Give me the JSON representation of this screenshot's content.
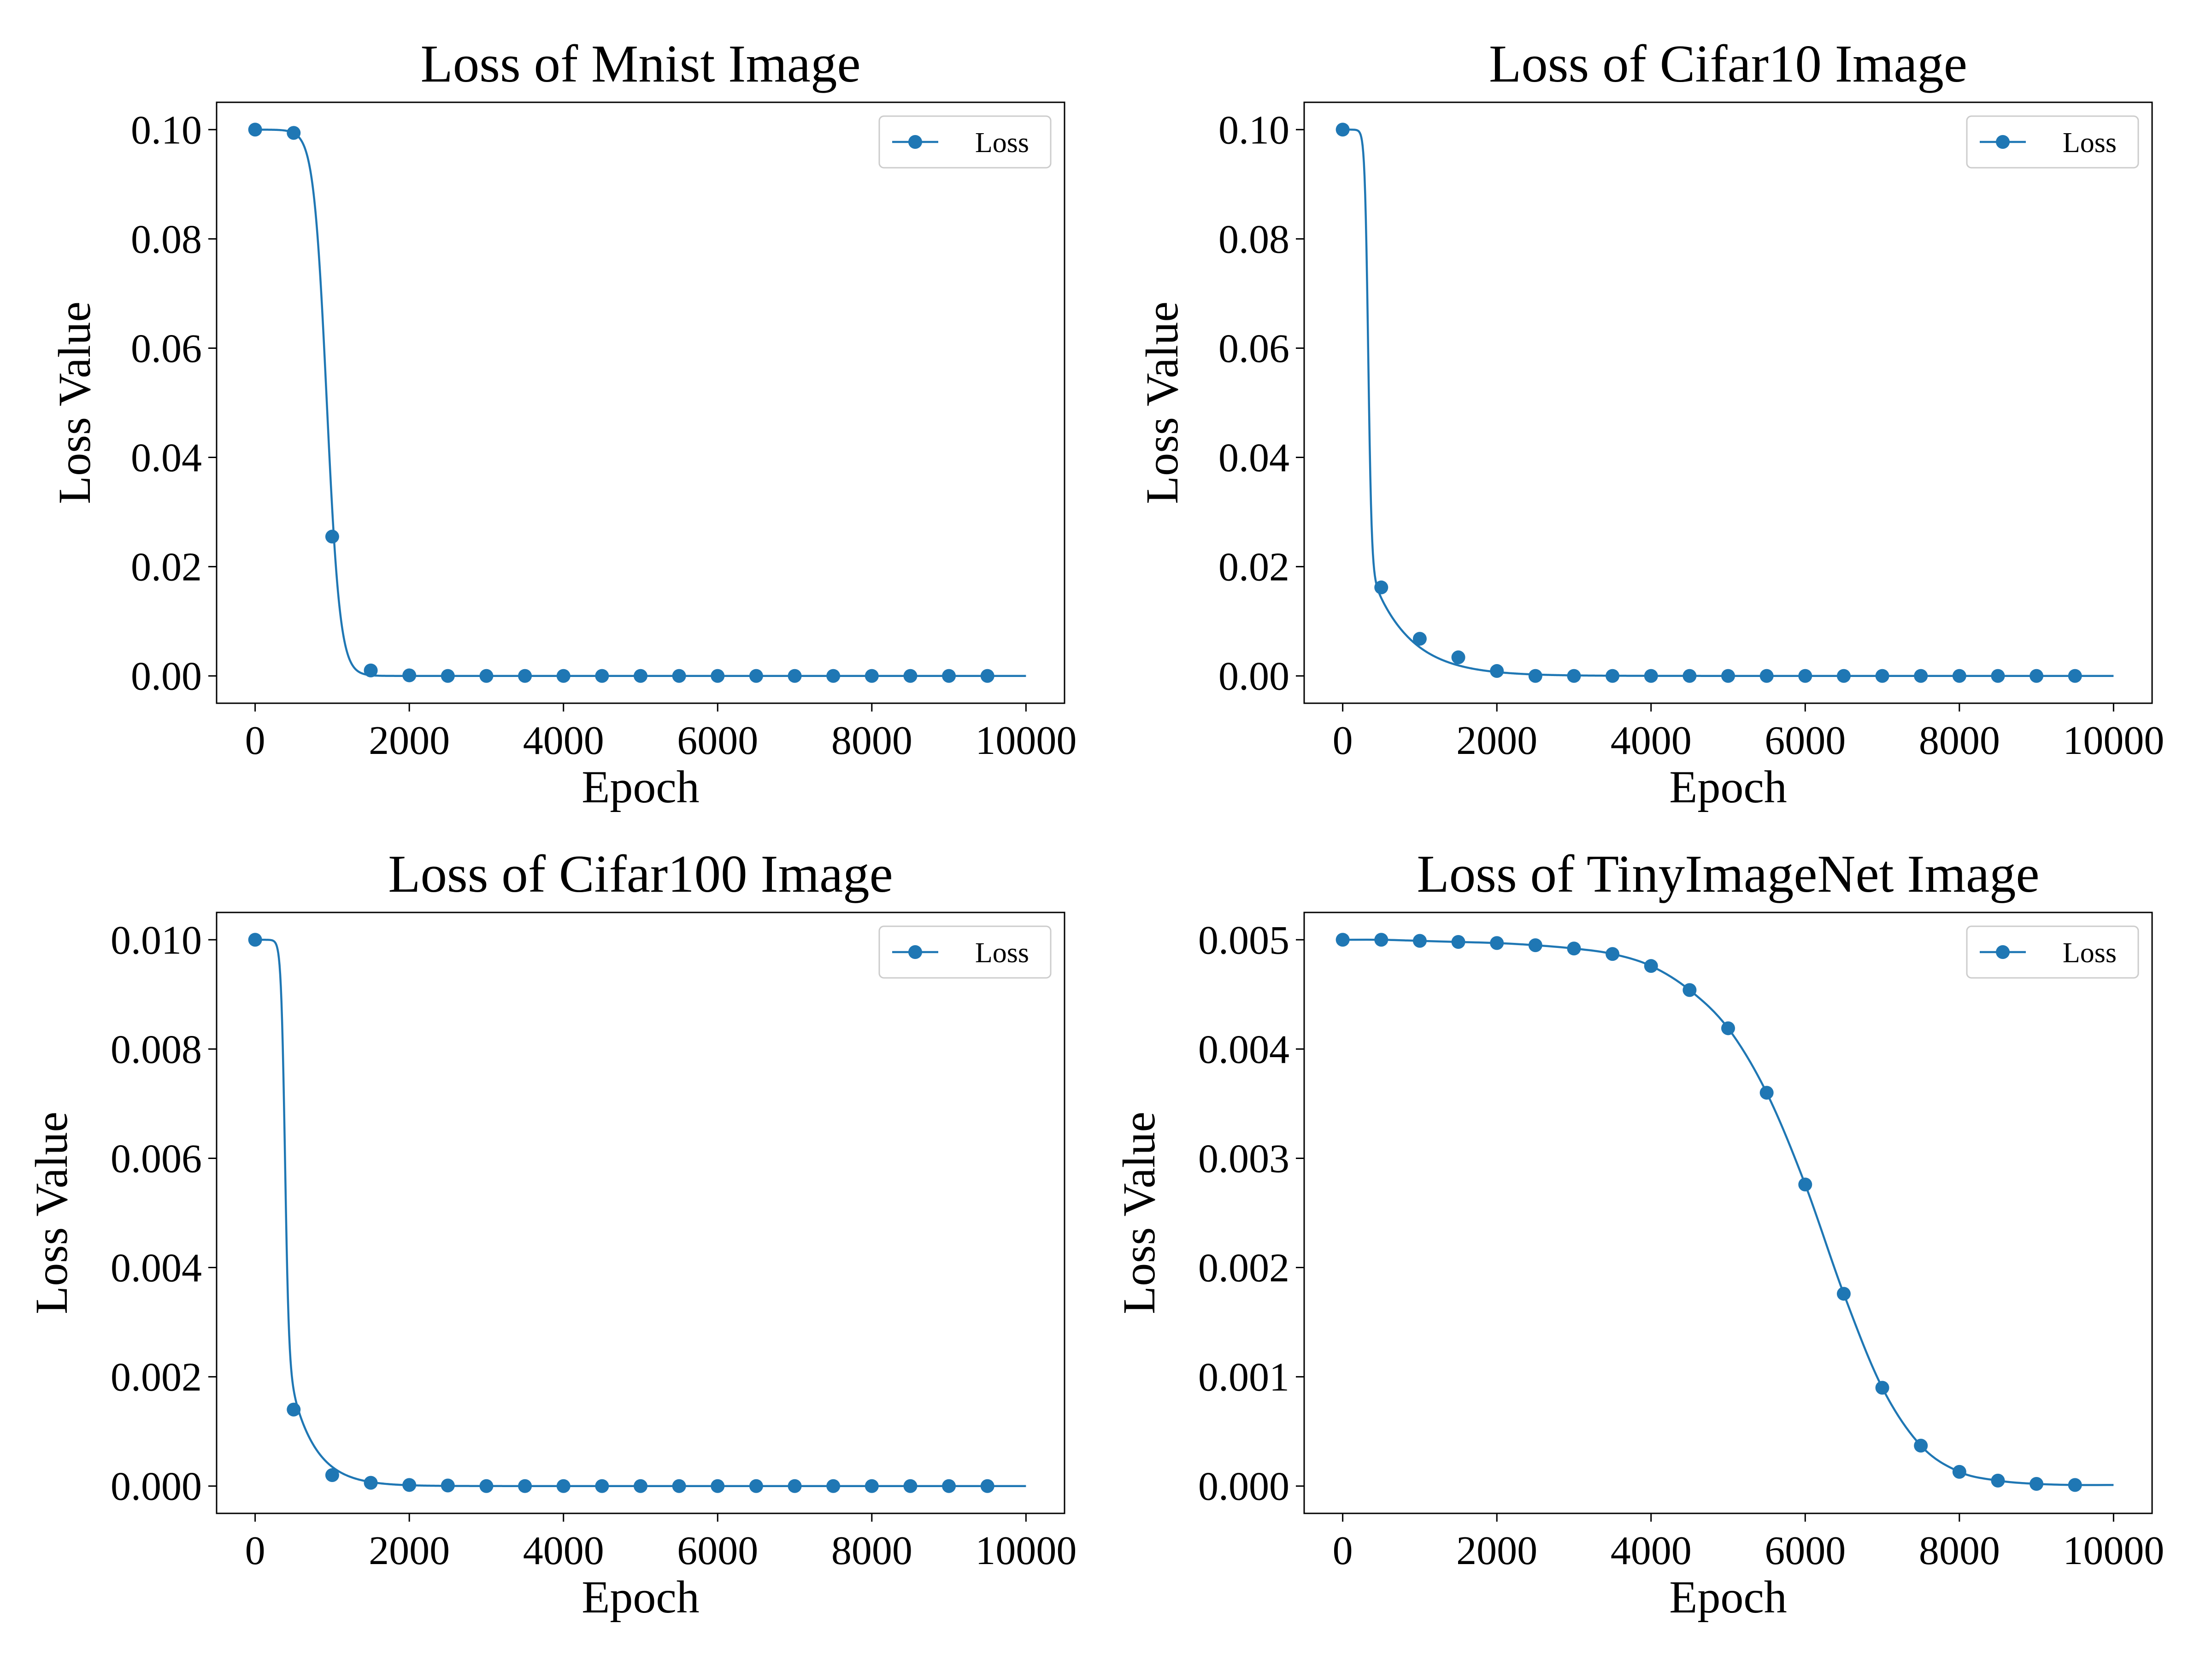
{
  "chart_data": [
    {
      "type": "line",
      "title": "Loss of Mnist Image",
      "xlabel": "Epoch",
      "ylabel": "Loss Value",
      "xlim": [
        -500,
        10500
      ],
      "ylim": [
        -0.005,
        0.105
      ],
      "xticks": [
        0,
        2000,
        4000,
        6000,
        8000,
        10000
      ],
      "xtick_labels": [
        "0",
        "2000",
        "4000",
        "6000",
        "8000",
        "10000"
      ],
      "yticks": [
        0.0,
        0.02,
        0.04,
        0.06,
        0.08,
        0.1
      ],
      "ytick_labels": [
        "0.00",
        "0.02",
        "0.04",
        "0.06",
        "0.08",
        "0.10"
      ],
      "legend": {
        "placement": "upper right",
        "entries": [
          "Loss"
        ]
      },
      "grid": false,
      "curve_shape": {
        "kind": "sigmoid",
        "top": 0.1,
        "bottom": 0.0,
        "center": 930,
        "width": 85
      },
      "series": [
        {
          "name": "Loss",
          "color": "#1f77b4",
          "x": [
            0,
            500,
            1000,
            1500,
            2000,
            2500,
            3000,
            3500,
            4000,
            4500,
            5000,
            5500,
            6000,
            6500,
            7000,
            7500,
            8000,
            8500,
            9000,
            9500
          ],
          "y": [
            0.1,
            0.0994,
            0.0255,
            0.001,
            0.0001,
            0.0,
            0.0,
            0.0,
            0.0,
            0.0,
            0.0,
            0.0,
            0.0,
            0.0,
            0.0,
            0.0,
            0.0,
            0.0,
            0.0,
            0.0
          ],
          "line_end_x": 10000
        }
      ]
    },
    {
      "type": "line",
      "title": "Loss of Cifar10 Image",
      "xlabel": "Epoch",
      "ylabel": "Loss Value",
      "xlim": [
        -500,
        10500
      ],
      "ylim": [
        -0.005,
        0.105
      ],
      "xticks": [
        0,
        2000,
        4000,
        6000,
        8000,
        10000
      ],
      "xtick_labels": [
        "0",
        "2000",
        "4000",
        "6000",
        "8000",
        "10000"
      ],
      "yticks": [
        0.0,
        0.02,
        0.04,
        0.06,
        0.08,
        0.1
      ],
      "ytick_labels": [
        "0.00",
        "0.02",
        "0.04",
        "0.06",
        "0.08",
        "0.10"
      ],
      "legend": {
        "placement": "upper right",
        "entries": [
          "Loss"
        ]
      },
      "grid": false,
      "curve_shape": {
        "kind": "sigmoid-with-tail",
        "top": 0.1,
        "bottom": 0.0,
        "center": 330,
        "width": 22,
        "tail_amplitude": 0.02,
        "tail_decay": 500
      },
      "series": [
        {
          "name": "Loss",
          "color": "#1f77b4",
          "x": [
            0,
            500,
            1000,
            1500,
            2000,
            2500,
            3000,
            3500,
            4000,
            4500,
            5000,
            5500,
            6000,
            6500,
            7000,
            7500,
            8000,
            8500,
            9000,
            9500
          ],
          "y": [
            0.1,
            0.0162,
            0.0068,
            0.0034,
            0.0009,
            0.0,
            0.0,
            0.0,
            0.0,
            0.0,
            0.0,
            0.0,
            0.0,
            0.0,
            0.0,
            0.0,
            0.0,
            0.0,
            0.0,
            0.0
          ],
          "line_end_x": 10000
        }
      ]
    },
    {
      "type": "line",
      "title": "Loss of Cifar100 Image",
      "xlabel": "Epoch",
      "ylabel": "Loss Value",
      "xlim": [
        -500,
        10500
      ],
      "ylim": [
        -0.0005,
        0.0105
      ],
      "xticks": [
        0,
        2000,
        4000,
        6000,
        8000,
        10000
      ],
      "xtick_labels": [
        "0",
        "2000",
        "4000",
        "6000",
        "8000",
        "10000"
      ],
      "yticks": [
        0.0,
        0.002,
        0.004,
        0.006,
        0.008,
        0.01
      ],
      "ytick_labels": [
        "0.000",
        "0.002",
        "0.004",
        "0.006",
        "0.008",
        "0.010"
      ],
      "legend": {
        "placement": "upper right",
        "entries": [
          "Loss"
        ]
      },
      "grid": false,
      "curve_shape": {
        "kind": "sigmoid-with-tail",
        "top": 0.01,
        "bottom": 0.0,
        "center": 385,
        "width": 25,
        "tail_amplitude": 0.0024,
        "tail_decay": 320
      },
      "series": [
        {
          "name": "Loss",
          "color": "#1f77b4",
          "x": [
            0,
            500,
            1000,
            1500,
            2000,
            2500,
            3000,
            3500,
            4000,
            4500,
            5000,
            5500,
            6000,
            6500,
            7000,
            7500,
            8000,
            8500,
            9000,
            9500
          ],
          "y": [
            0.01,
            0.0014,
            0.0002,
            6e-05,
            2e-05,
            1e-05,
            0.0,
            0.0,
            0.0,
            0.0,
            0.0,
            0.0,
            0.0,
            0.0,
            0.0,
            0.0,
            0.0,
            0.0,
            0.0,
            0.0
          ],
          "line_end_x": 10000
        }
      ]
    },
    {
      "type": "line",
      "title": "Loss of TinyImageNet Image",
      "xlabel": "Epoch",
      "ylabel": "Loss Value",
      "xlim": [
        -500,
        10500
      ],
      "ylim": [
        -0.00025,
        0.00525
      ],
      "xticks": [
        0,
        2000,
        4000,
        6000,
        8000,
        10000
      ],
      "xtick_labels": [
        "0",
        "2000",
        "4000",
        "6000",
        "8000",
        "10000"
      ],
      "yticks": [
        0.0,
        0.001,
        0.002,
        0.003,
        0.004,
        0.005
      ],
      "ytick_labels": [
        "0.000",
        "0.001",
        "0.002",
        "0.003",
        "0.004",
        "0.005"
      ],
      "legend": {
        "placement": "upper right",
        "entries": [
          "Loss"
        ]
      },
      "grid": false,
      "curve_shape": {
        "kind": "smooth-through-points"
      },
      "series": [
        {
          "name": "Loss",
          "color": "#1f77b4",
          "x": [
            0,
            500,
            1000,
            1500,
            2000,
            2500,
            3000,
            3500,
            4000,
            4500,
            5000,
            5500,
            6000,
            6500,
            7000,
            7500,
            8000,
            8500,
            9000,
            9500
          ],
          "y": [
            0.005,
            0.005,
            0.00499,
            0.00498,
            0.00497,
            0.00495,
            0.00492,
            0.00487,
            0.00476,
            0.00454,
            0.00419,
            0.0036,
            0.00276,
            0.00176,
            0.0009,
            0.00037,
            0.00013,
            5e-05,
            2e-05,
            1e-05
          ],
          "line_end_x": 10000,
          "line_end_y": 1e-05
        }
      ]
    }
  ]
}
